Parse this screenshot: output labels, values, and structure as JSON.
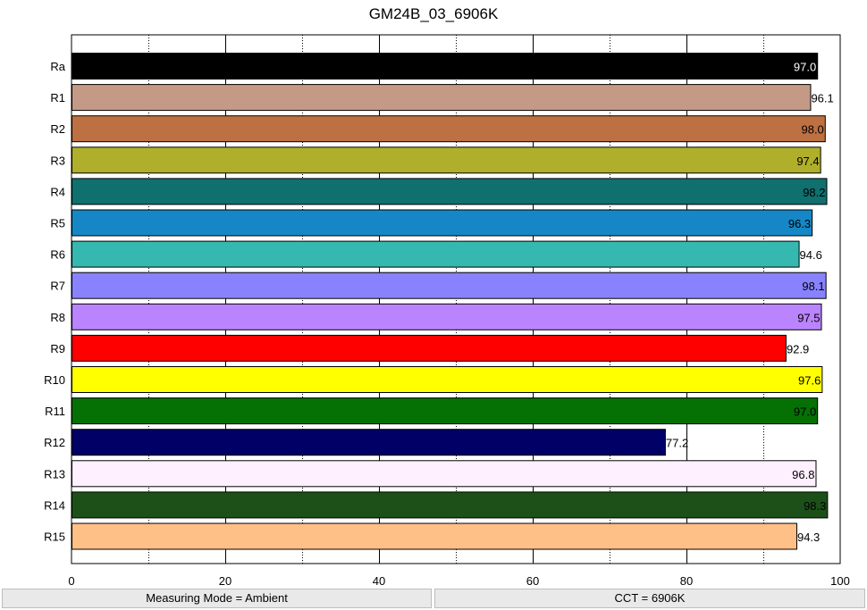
{
  "chart_data": {
    "type": "bar",
    "orientation": "horizontal",
    "title": "GM24B_03_6906K",
    "xlabel": "",
    "ylabel": "",
    "xlim": [
      0,
      100
    ],
    "x_ticks": [
      "0",
      "20",
      "40",
      "60",
      "80",
      "100"
    ],
    "grid": "vertical dotted minor and solid major",
    "categories": [
      "Ra",
      "R1",
      "R2",
      "R3",
      "R4",
      "R5",
      "R6",
      "R7",
      "R8",
      "R9",
      "R10",
      "R11",
      "R12",
      "R13",
      "R14",
      "R15"
    ],
    "values": [
      97.0,
      96.1,
      98.0,
      97.4,
      98.2,
      96.3,
      94.6,
      98.1,
      97.5,
      92.9,
      97.6,
      97.0,
      77.2,
      96.8,
      98.3,
      94.3
    ],
    "value_labels": [
      "97.0",
      "96.1",
      "98.0",
      "97.4",
      "98.2",
      "96.3",
      "94.6",
      "98.1",
      "97.5",
      "92.9",
      "97.6",
      "97.0",
      "77.2",
      "96.8",
      "98.3",
      "94.3"
    ],
    "colors": [
      "#000000",
      "#c49a86",
      "#bd7042",
      "#afaf2b",
      "#0f706e",
      "#1587c6",
      "#35b8b0",
      "#8882ff",
      "#bb84ff",
      "#ff0000",
      "#ffff00",
      "#057004",
      "#000066",
      "#fff0ff",
      "#1d5019",
      "#ffc088"
    ],
    "label_colors": [
      "#ffffff",
      "#000000",
      "#000000",
      "#000000",
      "#000000",
      "#000000",
      "#000000",
      "#000000",
      "#000000",
      "#000000",
      "#000000",
      "#000000",
      "#000000",
      "#000000",
      "#000000",
      "#000000"
    ]
  },
  "status": {
    "left": "Measuring Mode = Ambient",
    "right": "CCT = 6906K"
  }
}
